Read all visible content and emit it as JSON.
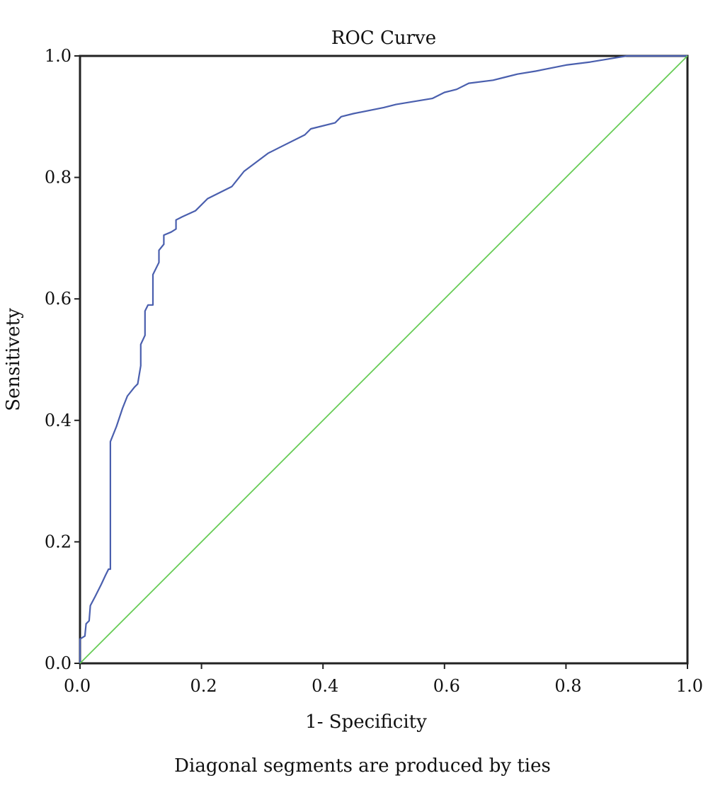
{
  "chart_data": {
    "type": "line",
    "title": "ROC Curve",
    "xlabel": "1- Specificity",
    "ylabel": "Sensitivety",
    "footnote": "Diagonal segments are produced by ties",
    "xlim": [
      0,
      1
    ],
    "ylim": [
      0,
      1
    ],
    "x_ticks": [
      "0.0",
      "0.2",
      "0.4",
      "0.6",
      "0.8",
      "1.0"
    ],
    "y_ticks": [
      "0.0",
      "0.2",
      "0.4",
      "0.6",
      "0.8",
      "1.0"
    ],
    "grid": false,
    "legend": "none",
    "series": [
      {
        "color": "#4a5fae",
        "points": [
          [
            0,
            0
          ],
          [
            0,
            0.04
          ],
          [
            0.008,
            0.045
          ],
          [
            0.01,
            0.065
          ],
          [
            0.015,
            0.07
          ],
          [
            0.017,
            0.095
          ],
          [
            0.025,
            0.11
          ],
          [
            0.035,
            0.13
          ],
          [
            0.042,
            0.145
          ],
          [
            0.047,
            0.155
          ],
          [
            0.05,
            0.155
          ],
          [
            0.05,
            0.365
          ],
          [
            0.06,
            0.39
          ],
          [
            0.07,
            0.42
          ],
          [
            0.078,
            0.44
          ],
          [
            0.09,
            0.455
          ],
          [
            0.095,
            0.46
          ],
          [
            0.1,
            0.49
          ],
          [
            0.1,
            0.525
          ],
          [
            0.107,
            0.54
          ],
          [
            0.107,
            0.58
          ],
          [
            0.112,
            0.59
          ],
          [
            0.12,
            0.59
          ],
          [
            0.12,
            0.64
          ],
          [
            0.13,
            0.66
          ],
          [
            0.13,
            0.68
          ],
          [
            0.138,
            0.69
          ],
          [
            0.138,
            0.705
          ],
          [
            0.15,
            0.71
          ],
          [
            0.158,
            0.715
          ],
          [
            0.158,
            0.73
          ],
          [
            0.168,
            0.735
          ],
          [
            0.19,
            0.745
          ],
          [
            0.21,
            0.765
          ],
          [
            0.25,
            0.785
          ],
          [
            0.27,
            0.81
          ],
          [
            0.31,
            0.84
          ],
          [
            0.33,
            0.85
          ],
          [
            0.37,
            0.87
          ],
          [
            0.38,
            0.88
          ],
          [
            0.42,
            0.89
          ],
          [
            0.43,
            0.9
          ],
          [
            0.45,
            0.905
          ],
          [
            0.5,
            0.915
          ],
          [
            0.52,
            0.92
          ],
          [
            0.58,
            0.93
          ],
          [
            0.6,
            0.94
          ],
          [
            0.62,
            0.945
          ],
          [
            0.64,
            0.955
          ],
          [
            0.68,
            0.96
          ],
          [
            0.7,
            0.965
          ],
          [
            0.72,
            0.97
          ],
          [
            0.75,
            0.975
          ],
          [
            0.8,
            0.985
          ],
          [
            0.84,
            0.99
          ],
          [
            0.87,
            0.995
          ],
          [
            0.9,
            1.0
          ],
          [
            1.0,
            1.0
          ]
        ]
      },
      {
        "color": "#66cc55",
        "points": [
          [
            0,
            0
          ],
          [
            1,
            1
          ]
        ]
      }
    ]
  }
}
